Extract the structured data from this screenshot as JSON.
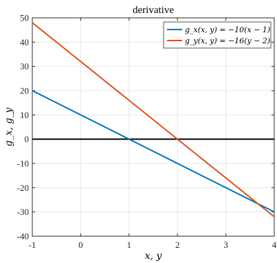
{
  "chart_data": {
    "type": "line",
    "title": "derivative",
    "xlabel": "x, y",
    "ylabel": "g_x, g_y",
    "xlim": [
      -1,
      4
    ],
    "ylim": [
      -40,
      50
    ],
    "grid": true,
    "legend_position": "top-right",
    "x_ticks": [
      "-1",
      "0",
      "1",
      "2",
      "3",
      "4"
    ],
    "y_ticks": [
      "-40",
      "-30",
      "-20",
      "-10",
      "0",
      "10",
      "20",
      "30",
      "40",
      "50"
    ],
    "series": [
      {
        "name": "g_x(x, y) = −10(x − 1)",
        "color": "#0072BD",
        "x": [
          -1,
          4
        ],
        "y": [
          20,
          -30
        ]
      },
      {
        "name": "g_y(x, y) = −16(y − 2)",
        "color": "#D95319",
        "x": [
          -1,
          4
        ],
        "y": [
          48,
          -32
        ]
      }
    ],
    "reference_line": {
      "y": 0,
      "color": "#000000"
    }
  }
}
